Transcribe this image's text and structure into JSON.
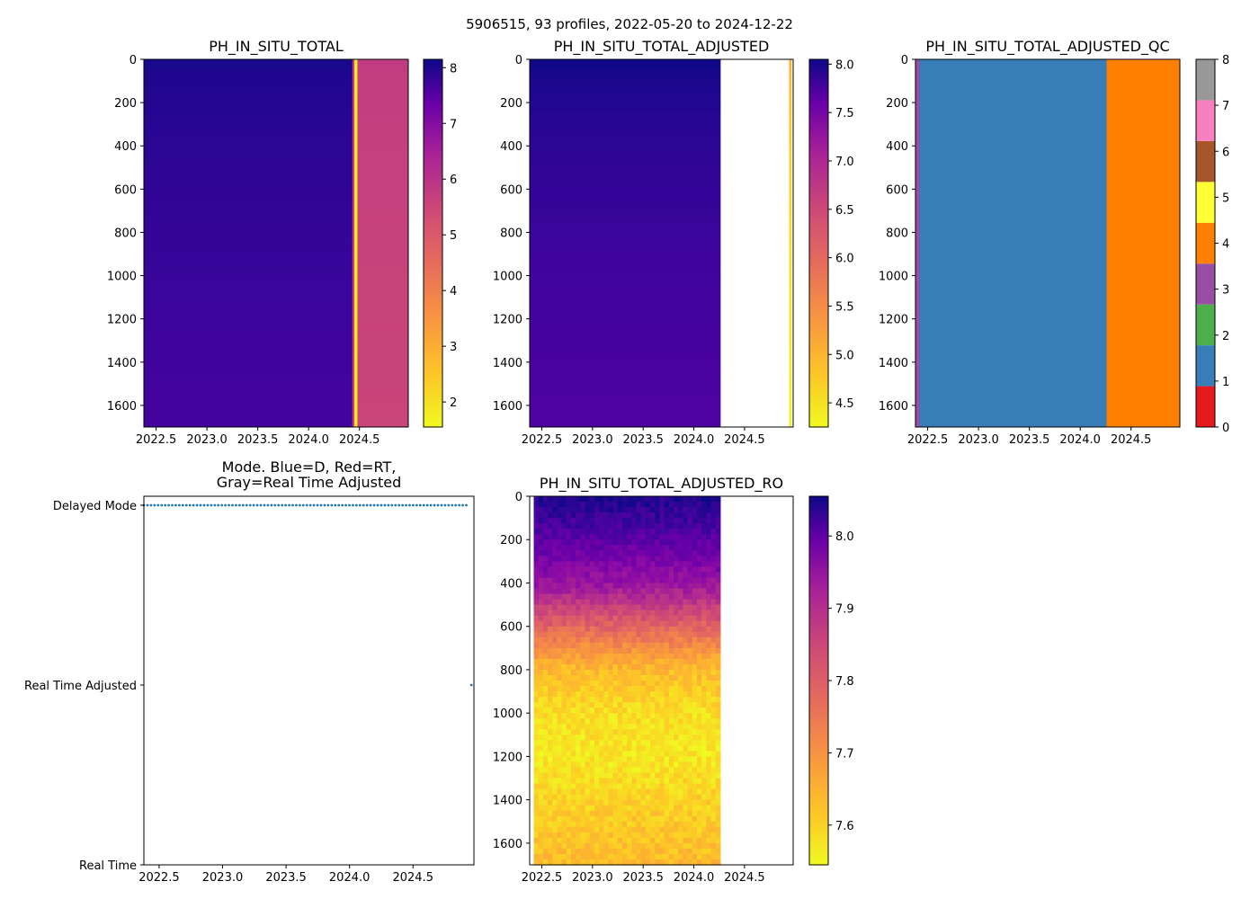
{
  "suptitle": "5906515, 93 profiles, 2022-05-20 to 2024-12-22",
  "chart_data": [
    {
      "type": "heatmap",
      "title": "PH_IN_SITU_TOTAL",
      "x_ticks": [
        "2022.5",
        "2023.0",
        "2023.5",
        "2024.0",
        "2024.5"
      ],
      "x_tick_values": [
        2022.5,
        2023.0,
        2023.5,
        2024.0,
        2024.5
      ],
      "xlim": [
        2022.38,
        2024.98
      ],
      "y_ticks": [
        "0",
        "200",
        "400",
        "600",
        "800",
        "1000",
        "1200",
        "1400",
        "1600"
      ],
      "y_tick_values": [
        0,
        200,
        400,
        600,
        800,
        1000,
        1200,
        1400,
        1600
      ],
      "ylim": [
        1700,
        0
      ],
      "colormap": "plasma_r",
      "colorbar_ticks": [
        "2",
        "3",
        "4",
        "5",
        "6",
        "7",
        "8"
      ],
      "colorbar_tick_values": [
        2,
        3,
        4,
        5,
        6,
        7,
        8
      ],
      "clim": [
        1.55,
        8.15
      ],
      "columns": [
        {
          "x0": 2022.38,
          "x1": 2024.43,
          "surface": 8.0,
          "deep": 7.45
        },
        {
          "x0": 2024.43,
          "x1": 2024.45,
          "surface": 5.2,
          "deep": 5.1
        },
        {
          "x0": 2024.45,
          "x1": 2024.48,
          "surface": 1.7,
          "deep": 1.7
        },
        {
          "x0": 2024.48,
          "x1": 2024.98,
          "surface": 5.1,
          "deep": 4.9
        }
      ]
    },
    {
      "type": "heatmap",
      "title": "PH_IN_SITU_TOTAL_ADJUSTED",
      "x_ticks": [
        "2022.5",
        "2023.0",
        "2023.5",
        "2024.0",
        "2024.5"
      ],
      "x_tick_values": [
        2022.5,
        2023.0,
        2023.5,
        2024.0,
        2024.5
      ],
      "xlim": [
        2022.38,
        2024.98
      ],
      "y_ticks": [
        "0",
        "200",
        "400",
        "600",
        "800",
        "1000",
        "1200",
        "1400",
        "1600"
      ],
      "y_tick_values": [
        0,
        200,
        400,
        600,
        800,
        1000,
        1200,
        1400,
        1600
      ],
      "ylim": [
        1700,
        0
      ],
      "colormap": "plasma_r",
      "colorbar_ticks": [
        "4.5",
        "5.0",
        "5.5",
        "6.0",
        "6.5",
        "7.0",
        "7.5",
        "8.0"
      ],
      "colorbar_tick_values": [
        4.5,
        5.0,
        5.5,
        6.0,
        6.5,
        7.0,
        7.5,
        8.0
      ],
      "clim": [
        4.25,
        8.05
      ],
      "columns": [
        {
          "x0": 2022.38,
          "x1": 2024.26,
          "surface": 8.02,
          "deep": 7.55
        },
        {
          "x0": 2024.94,
          "x1": 2024.96,
          "surface": 4.9,
          "deep": 4.3
        }
      ]
    },
    {
      "type": "heatmap",
      "title": "PH_IN_SITU_TOTAL_ADJUSTED_QC",
      "x_ticks": [
        "2022.5",
        "2023.0",
        "2023.5",
        "2024.0",
        "2024.5"
      ],
      "x_tick_values": [
        2022.5,
        2023.0,
        2023.5,
        2024.0,
        2024.5
      ],
      "xlim": [
        2022.38,
        2024.98
      ],
      "y_ticks": [
        "0",
        "200",
        "400",
        "600",
        "800",
        "1000",
        "1200",
        "1400",
        "1600"
      ],
      "y_tick_values": [
        0,
        200,
        400,
        600,
        800,
        1000,
        1200,
        1400,
        1600
      ],
      "ylim": [
        1700,
        0
      ],
      "colormap": "categorical_qc",
      "colorbar_ticks": [
        "0",
        "1",
        "2",
        "3",
        "4",
        "5",
        "6",
        "7",
        "8"
      ],
      "colorbar_tick_values": [
        0,
        1,
        2,
        3,
        4,
        5,
        6,
        7,
        8
      ],
      "clim": [
        0,
        8
      ],
      "qc_colors": [
        "#e41a1c",
        "#377eb8",
        "#4daf4a",
        "#984ea3",
        "#ff7f00",
        "#ffff33",
        "#a65628",
        "#f781bf",
        "#999999"
      ],
      "columns": [
        {
          "x0": 2022.38,
          "x1": 2022.42,
          "qc": 3
        },
        {
          "x0": 2022.42,
          "x1": 2024.26,
          "qc": 1
        },
        {
          "x0": 2024.26,
          "x1": 2024.98,
          "qc": 4
        }
      ]
    },
    {
      "type": "scatter",
      "title_line1": "Mode. Blue=D, Red=RT,",
      "title_line2": "Gray=Real Time Adjusted",
      "x_ticks": [
        "2022.5",
        "2023.0",
        "2023.5",
        "2024.0",
        "2024.5"
      ],
      "x_tick_values": [
        2022.5,
        2023.0,
        2023.5,
        2024.0,
        2024.5
      ],
      "xlim": [
        2022.38,
        2024.98
      ],
      "y_ticks": [
        "Delayed Mode",
        "Real Time Adjusted",
        "Real Time"
      ],
      "y_tick_values": [
        2,
        1,
        0
      ],
      "ylim": [
        0,
        2.05
      ],
      "point_color": "#1f77b4",
      "delayed_mode": {
        "x_start": 2022.38,
        "x_end": 2024.92,
        "count": 92,
        "y": 2
      },
      "real_time_adjusted": {
        "x": [
          2024.96
        ],
        "y": 1
      }
    },
    {
      "type": "heatmap",
      "title": "PH_IN_SITU_TOTAL_ADJUSTED_RO",
      "x_ticks": [
        "2022.5",
        "2023.0",
        "2023.5",
        "2024.0",
        "2024.5"
      ],
      "x_tick_values": [
        2022.5,
        2023.0,
        2023.5,
        2024.0,
        2024.5
      ],
      "xlim": [
        2022.38,
        2024.98
      ],
      "y_ticks": [
        "0",
        "200",
        "400",
        "600",
        "800",
        "1000",
        "1200",
        "1400",
        "1600"
      ],
      "y_tick_values": [
        0,
        200,
        400,
        600,
        800,
        1000,
        1200,
        1400,
        1600
      ],
      "ylim": [
        1700,
        0
      ],
      "colormap": "plasma_r",
      "colorbar_ticks": [
        "7.6",
        "7.7",
        "7.8",
        "7.9",
        "8.0"
      ],
      "colorbar_tick_values": [
        7.6,
        7.7,
        7.8,
        7.9,
        8.0
      ],
      "clim": [
        7.545,
        8.055
      ],
      "data_x_range": [
        2022.42,
        2024.26
      ],
      "depth_profile": [
        {
          "depth": 0,
          "value": 8.04
        },
        {
          "depth": 100,
          "value": 8.01
        },
        {
          "depth": 200,
          "value": 7.97
        },
        {
          "depth": 300,
          "value": 7.93
        },
        {
          "depth": 400,
          "value": 7.89
        },
        {
          "depth": 500,
          "value": 7.82
        },
        {
          "depth": 600,
          "value": 7.75
        },
        {
          "depth": 700,
          "value": 7.68
        },
        {
          "depth": 800,
          "value": 7.62
        },
        {
          "depth": 1000,
          "value": 7.575
        },
        {
          "depth": 1200,
          "value": 7.565
        },
        {
          "depth": 1400,
          "value": 7.59
        },
        {
          "depth": 1700,
          "value": 7.62
        }
      ]
    }
  ]
}
